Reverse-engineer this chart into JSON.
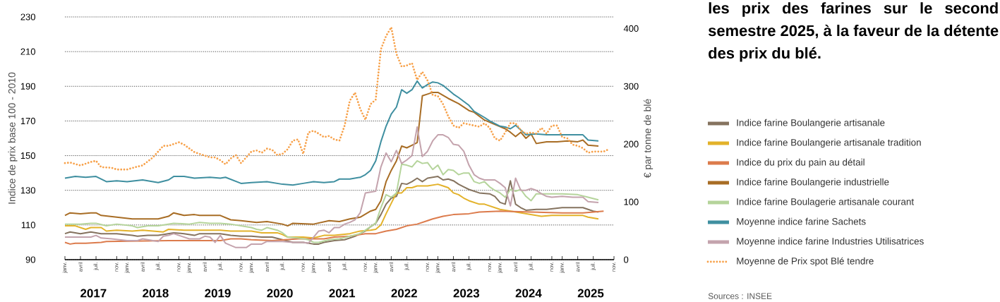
{
  "chart_data": {
    "type": "line",
    "ylabel": "Indice de prix base 100 - 2010",
    "y2label": "€ par tonne de blé",
    "xlim": [
      "2017-01",
      "2025-11"
    ],
    "xticks": [
      {
        "value": "2017-01",
        "label": "janv."
      },
      {
        "value": "2017-04",
        "label": "avril"
      },
      {
        "value": "2017-07",
        "label": "juil."
      },
      {
        "value": "2017-11",
        "label": "nov."
      },
      {
        "value": "2018-01",
        "label": "janv."
      },
      {
        "value": "2018-04",
        "label": "avril"
      },
      {
        "value": "2018-07",
        "label": "juil."
      },
      {
        "value": "2018-11",
        "label": "nov."
      },
      {
        "value": "2019-01",
        "label": "janv."
      },
      {
        "value": "2019-04",
        "label": "avril"
      },
      {
        "value": "2019-07",
        "label": "juil."
      },
      {
        "value": "2019-11",
        "label": "nov."
      },
      {
        "value": "2020-01",
        "label": "janv."
      },
      {
        "value": "2020-04",
        "label": "avril"
      },
      {
        "value": "2020-07",
        "label": "juil."
      },
      {
        "value": "2020-11",
        "label": "nov."
      },
      {
        "value": "2021-01",
        "label": "janv."
      },
      {
        "value": "2021-04",
        "label": "avril"
      },
      {
        "value": "2021-07",
        "label": "juil."
      },
      {
        "value": "2021-11",
        "label": "nov."
      },
      {
        "value": "2022-01",
        "label": "janv."
      },
      {
        "value": "2022-04",
        "label": "avril"
      },
      {
        "value": "2022-07",
        "label": "juil."
      },
      {
        "value": "2022-11",
        "label": "nov."
      },
      {
        "value": "2023-01",
        "label": "janv."
      },
      {
        "value": "2023-04",
        "label": "avril"
      },
      {
        "value": "2023-07",
        "label": "juil."
      },
      {
        "value": "2023-11",
        "label": "nov."
      },
      {
        "value": "2024-01",
        "label": "janv."
      },
      {
        "value": "2024-04",
        "label": "avril"
      },
      {
        "value": "2024-07",
        "label": "juil."
      },
      {
        "value": "2024-11",
        "label": "nov."
      },
      {
        "value": "2025-01",
        "label": "janv."
      },
      {
        "value": "2025-04",
        "label": "avril"
      },
      {
        "value": "2025-07",
        "label": "juil."
      },
      {
        "value": "2025-11",
        "label": "nov."
      }
    ],
    "ylim": [
      90,
      230
    ],
    "yticks": [
      90,
      110,
      130,
      150,
      170,
      190,
      210,
      230
    ],
    "y2lim": [
      0,
      420
    ],
    "y2ticks": [
      0,
      100,
      200,
      300,
      400
    ],
    "grid": "y",
    "legend": "right",
    "annotations": [
      "2017",
      "2018",
      "2019",
      "2020",
      "2021",
      "2022",
      "2023",
      "2024",
      "2025",
      "les prix des farines sur le second semestre 2025, à la faveur de la détente des prix du blé.",
      "Sources : INSEE"
    ],
    "series": [
      {
        "name": "Indice farine Boulangerie artisanale",
        "color": "#85735f",
        "line_style": "solid",
        "x": [
          "2017-01",
          "2017-02",
          "2017-04",
          "2017-06",
          "2017-08",
          "2017-11",
          "2018-02",
          "2018-03",
          "2018-05",
          "2018-07",
          "2018-10",
          "2018-12",
          "2019-02",
          "2019-03",
          "2019-07",
          "2019-09",
          "2019-11",
          "2020-01",
          "2020-03",
          "2020-05",
          "2020-07",
          "2020-09",
          "2020-11",
          "2021-01",
          "2021-02",
          "2021-03",
          "2021-05",
          "2021-07",
          "2021-09",
          "2021-11",
          "2021-12",
          "2022-01",
          "2022-02",
          "2022-03",
          "2022-04",
          "2022-05",
          "2022-06",
          "2022-07",
          "2022-08",
          "2022-09",
          "2022-10",
          "2022-11",
          "2023-01",
          "2023-02",
          "2023-03",
          "2023-04",
          "2023-05",
          "2023-06",
          "2023-07",
          "2023-08",
          "2023-09",
          "2023-11",
          "2023-12",
          "2024-01",
          "2024-02",
          "2024-03",
          "2024-04",
          "2024-05",
          "2024-06",
          "2024-08",
          "2024-10",
          "2025-01",
          "2025-05",
          "2025-07",
          "2025-08"
        ],
        "values": [
          105,
          106,
          105,
          106,
          105,
          105,
          104,
          103.5,
          104,
          104,
          105.5,
          105,
          104,
          105,
          105,
          104,
          103.5,
          103.5,
          103,
          103,
          101.5,
          100,
          100,
          99,
          99,
          100,
          101,
          101.5,
          103.5,
          106.5,
          109,
          111,
          116,
          122,
          125.5,
          126.5,
          134,
          133.5,
          135,
          137,
          135,
          137,
          138,
          136,
          136.5,
          135.5,
          133.5,
          132,
          130.5,
          129.5,
          128.5,
          128,
          126.5,
          123,
          122,
          135.5,
          122,
          120,
          118.5,
          119,
          119,
          120,
          120,
          118,
          117.5
        ]
      },
      {
        "name": "Indice farine Boulangerie artisanale tradition",
        "color": "#e3b22a",
        "line_style": "solid",
        "x": [
          "2017-01",
          "2017-03",
          "2017-05",
          "2017-06",
          "2017-08",
          "2017-09",
          "2017-11",
          "2018-02",
          "2018-04",
          "2018-06",
          "2018-08",
          "2018-09",
          "2018-12",
          "2019-03",
          "2019-05",
          "2019-07",
          "2019-09",
          "2019-11",
          "2020-01",
          "2020-03",
          "2020-06",
          "2020-07",
          "2020-08",
          "2020-11",
          "2021-01",
          "2021-03",
          "2021-05",
          "2021-08",
          "2021-10",
          "2021-12",
          "2022-01",
          "2022-02",
          "2022-03",
          "2022-04",
          "2022-05",
          "2022-06",
          "2022-07",
          "2022-08",
          "2022-09",
          "2022-11",
          "2023-01",
          "2023-02",
          "2023-03",
          "2023-04",
          "2023-05",
          "2023-06",
          "2023-07",
          "2023-08",
          "2023-09",
          "2023-10",
          "2023-11",
          "2024-01",
          "2024-03",
          "2024-05",
          "2024-07",
          "2024-09",
          "2024-11",
          "2025-01",
          "2025-03",
          "2025-05",
          "2025-06",
          "2025-08"
        ],
        "values": [
          109.5,
          109.5,
          107.5,
          108.5,
          108.5,
          106.5,
          107,
          106.5,
          107,
          106.5,
          106,
          107.5,
          107,
          107,
          107,
          107,
          106.5,
          106.5,
          106.5,
          105.5,
          105.5,
          104.5,
          103,
          103,
          102.5,
          104,
          104,
          105,
          106.5,
          107,
          107.5,
          110,
          116.5,
          122.5,
          128.5,
          128.5,
          131.5,
          131.5,
          132.5,
          132.5,
          133.5,
          132.5,
          131.5,
          128.5,
          127.5,
          125.5,
          124,
          123,
          122,
          122,
          121,
          119,
          118,
          117,
          116,
          115,
          115.5,
          115.5,
          115.5,
          115.5,
          114.5,
          113.5
        ]
      },
      {
        "name": "Indice du prix du pain au détail",
        "color": "#dc7b4c",
        "line_style": "solid",
        "x": [
          "2017-01",
          "2017-02",
          "2017-03",
          "2017-05",
          "2017-08",
          "2017-09",
          "2018-09",
          "2019-07",
          "2019-09",
          "2019-11",
          "2020-01",
          "2020-05",
          "2020-10",
          "2021-03",
          "2021-05",
          "2021-08",
          "2021-11",
          "2022-01",
          "2022-03",
          "2022-05",
          "2022-07",
          "2022-09",
          "2022-11",
          "2022-12",
          "2023-02",
          "2023-04",
          "2023-07",
          "2023-09",
          "2024-01",
          "2024-07",
          "2025-01",
          "2025-05",
          "2025-09"
        ],
        "values": [
          100,
          99,
          99.5,
          99.5,
          100,
          100.5,
          101,
          101,
          102,
          102,
          101.5,
          101,
          102,
          102,
          103,
          103.5,
          105,
          105,
          106.5,
          107.5,
          109.5,
          110.5,
          112.5,
          113.5,
          115,
          116,
          116.5,
          117.5,
          118,
          117.5,
          117,
          117,
          118
        ]
      },
      {
        "name": "Indice farine Boulangerie industrielle",
        "color": "#a86d25",
        "line_style": "solid",
        "x": [
          "2017-01",
          "2017-02",
          "2017-04",
          "2017-06",
          "2017-07",
          "2017-08",
          "2017-11",
          "2018-02",
          "2018-05",
          "2018-07",
          "2018-09",
          "2018-10",
          "2018-12",
          "2019-02",
          "2019-03",
          "2019-07",
          "2019-09",
          "2019-11",
          "2020-02",
          "2020-04",
          "2020-07",
          "2020-08",
          "2020-09",
          "2021-01",
          "2021-04",
          "2021-06",
          "2021-08",
          "2021-10",
          "2021-12",
          "2022-01",
          "2022-02",
          "2022-03",
          "2022-04",
          "2022-05",
          "2022-06",
          "2022-07",
          "2022-08",
          "2022-09",
          "2022-10",
          "2022-11",
          "2022-12",
          "2023-01",
          "2023-03",
          "2023-05",
          "2023-07",
          "2023-08",
          "2023-10",
          "2023-12",
          "2024-02",
          "2024-03",
          "2024-04",
          "2024-05",
          "2024-06",
          "2024-07",
          "2024-08",
          "2024-10",
          "2024-12",
          "2025-02",
          "2025-04",
          "2025-05",
          "2025-06",
          "2025-08"
        ],
        "values": [
          115.5,
          117,
          116.5,
          117,
          117,
          115.5,
          114.5,
          113.5,
          113.5,
          113.5,
          115,
          117,
          115.5,
          116,
          115.5,
          115.5,
          113,
          112.5,
          111.5,
          112,
          110.5,
          109.5,
          111,
          110.5,
          112.5,
          112,
          113.5,
          114.5,
          118,
          119,
          124,
          135,
          141.5,
          147,
          155.5,
          154.5,
          156,
          157.5,
          184.5,
          185.5,
          186.5,
          186.5,
          183,
          180,
          176,
          175,
          170.5,
          168,
          165.5,
          163.5,
          161,
          163.5,
          160,
          162.5,
          157,
          158,
          158,
          158.5,
          158,
          159,
          156,
          155.5
        ]
      },
      {
        "name": "Indice farine Boulagerie artisanale courant",
        "color": "#b5d49b",
        "line_style": "solid",
        "x": [
          "2017-01",
          "2017-04",
          "2017-06",
          "2017-07",
          "2017-09",
          "2017-11",
          "2018-02",
          "2018-03",
          "2018-05",
          "2018-07",
          "2018-10",
          "2019-01",
          "2019-03",
          "2019-05",
          "2019-07",
          "2019-09",
          "2019-11",
          "2020-01",
          "2020-02",
          "2020-03",
          "2020-04",
          "2020-06",
          "2020-07",
          "2020-08",
          "2020-10",
          "2020-12",
          "2021-01",
          "2021-02",
          "2021-04",
          "2021-06",
          "2021-08",
          "2021-10",
          "2021-11",
          "2021-12",
          "2022-01",
          "2022-02",
          "2022-03",
          "2022-04",
          "2022-05",
          "2022-06",
          "2022-07",
          "2022-08",
          "2022-09",
          "2022-10",
          "2022-11",
          "2022-12",
          "2023-01",
          "2023-02",
          "2023-03",
          "2023-04",
          "2023-05",
          "2023-06",
          "2023-07",
          "2023-08",
          "2023-09",
          "2023-10",
          "2023-11",
          "2023-12",
          "2024-01",
          "2024-02",
          "2024-03",
          "2024-04",
          "2024-05",
          "2024-06",
          "2024-07",
          "2024-08",
          "2024-10",
          "2025-01",
          "2025-04",
          "2025-06",
          "2025-08"
        ],
        "values": [
          110.5,
          110.5,
          111,
          111,
          109.5,
          110.5,
          109.5,
          108.5,
          109.5,
          109.5,
          111,
          110.5,
          111.5,
          111,
          111,
          110.5,
          109.5,
          108.5,
          107.5,
          107,
          108.5,
          107,
          105.5,
          103,
          102.5,
          101.5,
          100,
          100,
          101.5,
          102,
          103.5,
          105,
          107,
          109,
          111,
          120,
          127.5,
          126,
          128.5,
          145,
          144.5,
          143.5,
          147,
          145.5,
          146,
          142,
          144.5,
          139,
          142,
          141.5,
          139,
          140,
          140,
          135,
          134,
          135,
          132,
          130,
          128.5,
          126,
          130.5,
          129.5,
          130.5,
          126.5,
          124,
          128,
          128,
          128,
          127.5,
          126,
          124.5
        ]
      },
      {
        "name": "Moyenne indice farine Sachets",
        "color": "#3f8fa0",
        "line_style": "solid",
        "x": [
          "2017-01",
          "2017-03",
          "2017-05",
          "2017-07",
          "2017-09",
          "2017-11",
          "2018-01",
          "2018-04",
          "2018-07",
          "2018-09",
          "2018-10",
          "2018-12",
          "2019-02",
          "2019-05",
          "2019-07",
          "2019-08",
          "2019-11",
          "2020-01",
          "2020-04",
          "2020-07",
          "2020-09",
          "2020-11",
          "2021-01",
          "2021-03",
          "2021-05",
          "2021-06",
          "2021-08",
          "2021-10",
          "2021-11",
          "2021-12",
          "2022-01",
          "2022-02",
          "2022-03",
          "2022-04",
          "2022-05",
          "2022-06",
          "2022-07",
          "2022-08",
          "2022-09",
          "2022-10",
          "2022-11",
          "2022-12",
          "2023-01",
          "2023-02",
          "2023-04",
          "2023-05",
          "2023-07",
          "2023-08",
          "2023-10",
          "2023-11",
          "2024-01",
          "2024-02",
          "2024-03",
          "2024-04",
          "2024-06",
          "2024-08",
          "2024-10",
          "2025-01",
          "2025-05",
          "2025-06",
          "2025-08"
        ],
        "values": [
          137,
          138,
          137.5,
          138,
          135,
          135.5,
          135,
          136,
          134.5,
          136,
          138,
          138,
          137,
          137.5,
          137,
          137.5,
          134,
          134.5,
          135,
          133.5,
          133,
          134,
          135,
          134.5,
          135,
          136.5,
          136.5,
          137.5,
          139,
          141.5,
          147,
          158,
          167,
          174,
          178,
          188,
          186,
          188,
          193,
          189,
          191,
          192.5,
          192,
          190.5,
          185.5,
          183.5,
          179,
          175.5,
          172,
          170,
          167,
          166.5,
          165.5,
          167.5,
          162,
          162.5,
          162,
          162,
          162,
          159,
          158.5
        ]
      },
      {
        "name": "Moyenne indice farine Industries Utilisatrices",
        "color": "#c4a3ad",
        "line_style": "solid",
        "x": [
          "2017-01",
          "2017-03",
          "2017-06",
          "2017-07",
          "2017-08",
          "2017-10",
          "2018-01",
          "2018-03",
          "2018-04",
          "2018-06",
          "2018-07",
          "2018-08",
          "2018-09",
          "2018-10",
          "2018-11",
          "2019-01",
          "2019-03",
          "2019-04",
          "2019-05",
          "2019-06",
          "2019-07",
          "2019-08",
          "2019-10",
          "2019-12",
          "2020-01",
          "2020-03",
          "2020-04",
          "2020-07",
          "2020-09",
          "2020-11",
          "2020-12",
          "2021-01",
          "2021-02",
          "2021-03",
          "2021-04",
          "2021-05",
          "2021-06",
          "2021-07",
          "2021-08",
          "2021-09",
          "2021-10",
          "2021-11",
          "2022-01",
          "2022-02",
          "2022-03",
          "2022-04",
          "2022-05",
          "2022-06",
          "2022-07",
          "2022-08",
          "2022-09",
          "2022-10",
          "2022-11",
          "2022-12",
          "2023-01",
          "2023-02",
          "2023-03",
          "2023-04",
          "2023-05",
          "2023-06",
          "2023-07",
          "2023-08",
          "2023-09",
          "2023-10",
          "2023-12",
          "2024-01",
          "2024-02",
          "2024-03",
          "2024-04",
          "2024-05",
          "2024-06",
          "2024-07",
          "2024-08",
          "2024-09",
          "2024-10",
          "2024-11",
          "2025-01",
          "2025-03",
          "2025-05",
          "2025-06",
          "2025-08"
        ],
        "values": [
          103,
          103,
          103,
          104,
          102.5,
          102,
          101,
          101,
          102,
          101,
          100.5,
          103.5,
          104,
          105,
          104,
          102,
          102,
          103.5,
          103,
          100,
          104,
          99.5,
          97,
          97,
          99,
          99,
          100.5,
          100.5,
          100,
          100,
          99.5,
          103,
          106.5,
          107,
          105.5,
          108.5,
          108.5,
          110.5,
          111.5,
          113,
          117,
          128.5,
          129.5,
          143.5,
          151.5,
          146.5,
          153,
          145.5,
          147.5,
          150,
          166.5,
          149.5,
          152.5,
          158.5,
          162,
          162,
          160.5,
          156.5,
          156,
          152.5,
          144.5,
          139,
          137,
          136,
          136,
          134,
          131.5,
          121,
          137,
          130,
          130,
          131,
          130,
          128,
          126.5,
          126,
          126.5,
          126,
          126,
          123.5,
          123
        ]
      },
      {
        "name": "Moyenne de Prix spot Blé tendre",
        "color": "#f7a14a",
        "line_style": "dotted",
        "axis": "y2",
        "x": [
          "2017-01",
          "2017-02",
          "2017-04",
          "2017-06",
          "2017-07",
          "2017-08",
          "2017-10",
          "2017-11",
          "2018-01",
          "2018-03",
          "2018-04",
          "2018-06",
          "2018-07",
          "2018-08",
          "2018-09",
          "2018-10",
          "2018-11",
          "2018-12",
          "2019-02",
          "2019-03",
          "2019-05",
          "2019-06",
          "2019-07",
          "2019-08",
          "2019-09",
          "2019-10",
          "2019-11",
          "2020-01",
          "2020-02",
          "2020-03",
          "2020-04",
          "2020-05",
          "2020-06",
          "2020-07",
          "2020-08",
          "2020-09",
          "2020-10",
          "2020-11",
          "2020-12",
          "2021-01",
          "2021-02",
          "2021-03",
          "2021-04",
          "2021-05",
          "2021-06",
          "2021-07",
          "2021-08",
          "2021-09",
          "2021-10",
          "2021-11",
          "2021-12",
          "2022-01",
          "2022-02",
          "2022-03",
          "2022-04",
          "2022-05",
          "2022-06",
          "2022-07",
          "2022-08",
          "2022-09",
          "2022-10",
          "2022-11",
          "2022-12",
          "2023-01",
          "2023-02",
          "2023-03",
          "2023-04",
          "2023-05",
          "2023-06",
          "2023-07",
          "2023-08",
          "2023-09",
          "2023-10",
          "2023-11",
          "2023-12",
          "2024-01",
          "2024-02",
          "2024-03",
          "2024-04",
          "2024-05",
          "2024-06",
          "2024-07",
          "2024-08",
          "2024-09",
          "2024-10",
          "2024-11",
          "2024-12",
          "2025-01",
          "2025-02",
          "2025-03",
          "2025-04",
          "2025-05",
          "2025-06",
          "2025-07",
          "2025-08",
          "2025-09",
          "2025-10"
        ],
        "values": [
          167,
          168,
          163,
          169,
          171,
          160,
          159,
          156,
          156,
          161,
          163,
          177,
          187,
          197,
          197,
          200,
          203,
          199,
          186,
          183,
          177,
          177,
          172,
          165,
          175,
          181,
          167,
          187,
          189,
          185,
          192,
          190,
          181,
          183,
          191,
          206,
          208,
          183,
          220,
          223,
          218,
          212,
          214,
          208,
          206,
          232,
          275,
          289,
          261,
          242,
          269,
          277,
          364,
          387,
          402,
          356,
          334,
          336,
          340,
          311,
          325,
          310,
          285,
          283,
          269,
          248,
          232,
          228,
          236,
          234,
          232,
          230,
          236,
          228,
          210,
          206,
          220,
          236,
          236,
          224,
          218,
          220,
          218,
          228,
          218,
          232,
          232,
          212,
          210,
          199,
          197,
          193,
          185,
          187,
          187,
          187,
          191
        ]
      }
    ]
  }
}
